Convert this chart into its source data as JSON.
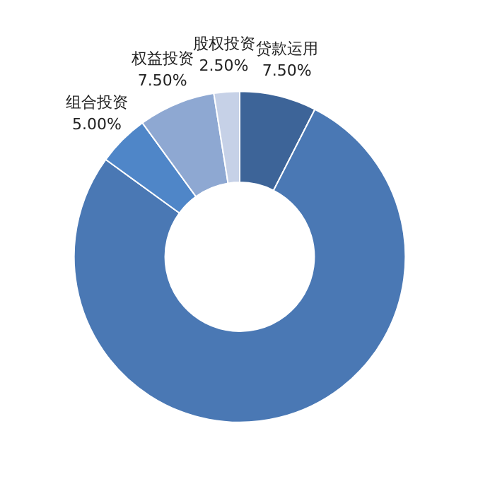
{
  "chart_data": {
    "type": "donut",
    "categories": [
      "贷款运用",
      null,
      "组合投资",
      "权益投资",
      "股权投资"
    ],
    "values": [
      7.5,
      77.5,
      5,
      7.5,
      2.5
    ],
    "colors": [
      "#3d6498",
      "#4a78b4",
      "#4f86c8",
      "#8ea8d2",
      "#c6d1e7"
    ],
    "value_labels": [
      "7.50%",
      null,
      "5.00%",
      "7.50%",
      "2.50%"
    ]
  }
}
